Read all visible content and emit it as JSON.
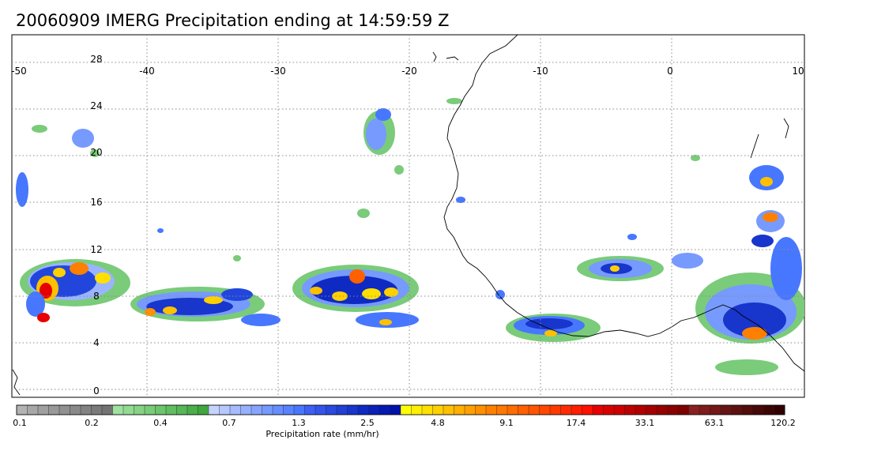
{
  "title": "20060909 IMERG Precipitation ending at 14:59:59 Z",
  "map": {
    "lon_range": [
      -50,
      10
    ],
    "lat_range": [
      -1,
      30
    ],
    "lon_labels": [
      "-50",
      "-40",
      "-30",
      "-20",
      "-10",
      "0",
      "10"
    ],
    "lat_labels": [
      "28",
      "24",
      "20",
      "16",
      "12",
      "8",
      "4",
      "0"
    ],
    "gridlines": true,
    "grid_style": "dotted"
  },
  "colorbar": {
    "title": "Precipitation rate (mm/hr)",
    "tick_labels": [
      "0.1",
      "0.2",
      "0.4",
      "0.7",
      "1.3",
      "2.5",
      "4.8",
      "9.1",
      "17.4",
      "33.1",
      "63.1",
      "120.2"
    ],
    "colors": [
      "#b3b3b3",
      "#a8a8a8",
      "#a0a0a0",
      "#999999",
      "#919191",
      "#8a8a8a",
      "#828282",
      "#7a7a7a",
      "#737373",
      "#9fe19f",
      "#93da93",
      "#86d386",
      "#79cc79",
      "#6cc56c",
      "#60be60",
      "#55b755",
      "#4aaf4a",
      "#3ea83e",
      "#c7d3ff",
      "#b7c8ff",
      "#a7bcff",
      "#97b0ff",
      "#87a5ff",
      "#779aff",
      "#678eff",
      "#5783ff",
      "#4777ff",
      "#3d60f5",
      "#3355eb",
      "#2a4ae0",
      "#2140d6",
      "#1835cc",
      "#0f2ac2",
      "#0a22ba",
      "#051ab3",
      "#0012aa",
      "#ffff00",
      "#ffef00",
      "#ffe000",
      "#ffd000",
      "#ffc000",
      "#ffb000",
      "#ffa000",
      "#ff9000",
      "#ff8000",
      "#ff7800",
      "#ff6d00",
      "#ff6000",
      "#ff5500",
      "#ff4800",
      "#ff3a00",
      "#ff2c00",
      "#ff1e00",
      "#ff1000",
      "#e60000",
      "#d90000",
      "#cc0000",
      "#bf0000",
      "#b20000",
      "#a50000",
      "#980000",
      "#8b0000",
      "#7e0000",
      "#8a2020",
      "#7f1c1c",
      "#741818",
      "#691414",
      "#5e1010",
      "#530c0c",
      "#480808",
      "#3d0404",
      "#320000"
    ]
  },
  "colors": {
    "coastline": "#000000",
    "grid": "#888888"
  }
}
